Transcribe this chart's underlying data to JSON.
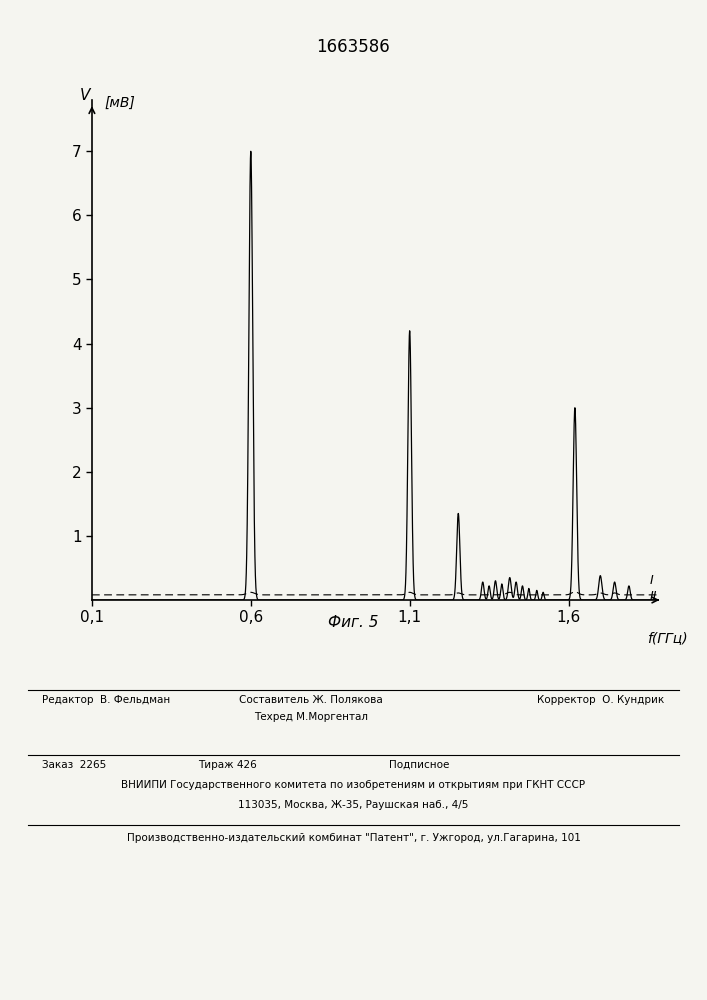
{
  "title": "1663586",
  "fig_caption": "Фиг. 5",
  "xlim": [
    0.1,
    1.88
  ],
  "ylim": [
    0,
    7.8
  ],
  "yticks": [
    1,
    2,
    3,
    4,
    5,
    6,
    7
  ],
  "xticks": [
    0.1,
    0.6,
    1.1,
    1.6
  ],
  "xtick_labels": [
    "0,1",
    "0,6",
    "1,1",
    "1,6"
  ],
  "background_color": "#f5f5f0",
  "line_color": "#000000",
  "footer_line1_left": "Редактор  В. Фельдман",
  "footer_line1_center_1": "Составитель Ж. Полякова",
  "footer_line1_center_2": "Техред М.Моргентал",
  "footer_line1_right": "Корректор  О. Кундрик",
  "footer_line2a": "Заказ  2265",
  "footer_line2b": "Тираж 426",
  "footer_line2c": "Подписное",
  "footer_line3": "ВНИИПИ Государственного комитета по изобретениям и открытиям при ГКНТ СССР",
  "footer_line4": "113035, Москва, Ж-35, Раушская наб., 4/5",
  "footer_line5": "Производственно-издательский комбинат \"Патент\", г. Ужгород, ул.Гагарина, 101"
}
